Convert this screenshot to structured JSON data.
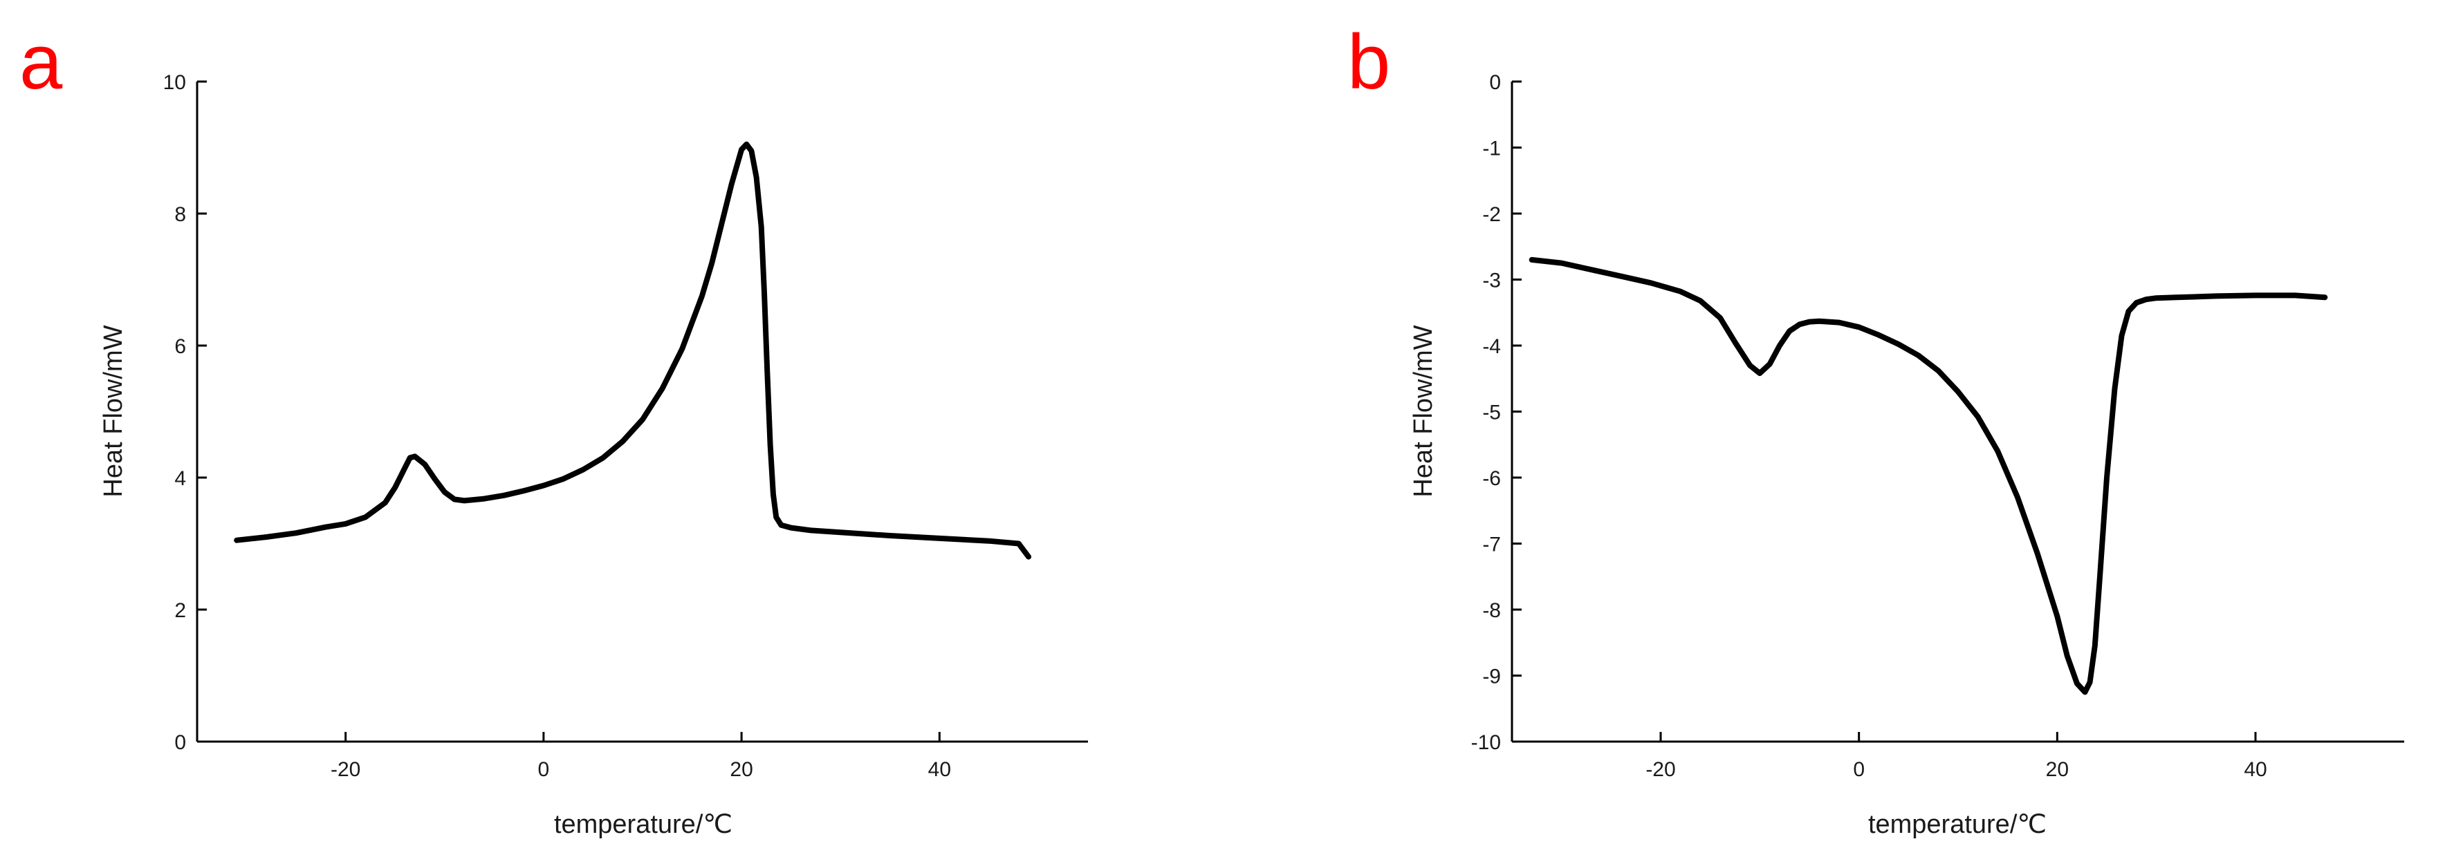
{
  "chart_data": [
    {
      "panel_label": "a",
      "type": "line",
      "xlabel": "temperature/℃",
      "ylabel": "Heat Flow/mW",
      "xlim": [
        -35,
        55
      ],
      "ylim": [
        0,
        10
      ],
      "x_ticks": [
        -20,
        0,
        20,
        40
      ],
      "y_ticks": [
        0,
        2,
        4,
        6,
        8,
        10
      ],
      "x_tick_labels": [
        "-20",
        "0",
        "20",
        "40"
      ],
      "y_tick_labels": [
        "0",
        "2",
        "4",
        "6",
        "8",
        "10"
      ],
      "grid": false,
      "series": [
        {
          "color": "#000000",
          "x": [
            -31,
            -28,
            -25,
            -22,
            -20,
            -18,
            -16,
            -15,
            -14,
            -13.5,
            -13,
            -12,
            -11,
            -10,
            -9,
            -8,
            -6,
            -4,
            -2,
            0,
            2,
            4,
            6,
            8,
            10,
            12,
            14,
            16,
            17,
            18,
            19,
            20,
            20.5,
            21,
            21.5,
            22,
            22.3,
            22.6,
            22.9,
            23.2,
            23.5,
            24,
            25,
            27,
            30,
            35,
            40,
            45,
            48,
            49
          ],
          "y": [
            3.05,
            3.1,
            3.16,
            3.25,
            3.3,
            3.4,
            3.62,
            3.85,
            4.15,
            4.3,
            4.32,
            4.2,
            3.98,
            3.78,
            3.67,
            3.65,
            3.68,
            3.73,
            3.8,
            3.88,
            3.98,
            4.12,
            4.3,
            4.55,
            4.88,
            5.35,
            5.95,
            6.75,
            7.25,
            7.85,
            8.45,
            8.97,
            9.05,
            8.95,
            8.55,
            7.8,
            6.8,
            5.6,
            4.5,
            3.75,
            3.4,
            3.28,
            3.24,
            3.2,
            3.17,
            3.12,
            3.08,
            3.04,
            3.0,
            2.8
          ]
        }
      ]
    },
    {
      "panel_label": "b",
      "type": "line",
      "xlabel": "temperature/℃",
      "ylabel": "Heat Flow/mW",
      "xlim": [
        -35,
        55
      ],
      "ylim": [
        -10,
        0
      ],
      "x_ticks": [
        -20,
        0,
        20,
        40
      ],
      "y_ticks": [
        0,
        -1,
        -2,
        -3,
        -4,
        -5,
        -6,
        -7,
        -8,
        -9,
        -10
      ],
      "x_tick_labels": [
        "-20",
        "0",
        "20",
        "40"
      ],
      "y_tick_labels": [
        "0",
        "-1",
        "-2",
        "-3",
        "-4",
        "-5",
        "-6",
        "-7",
        "-8",
        "-9",
        "-10"
      ],
      "grid": false,
      "series": [
        {
          "color": "#000000",
          "x": [
            -33,
            -30,
            -27,
            -24,
            -21,
            -18,
            -16,
            -14,
            -12.5,
            -11,
            -10,
            -9,
            -8,
            -7,
            -6,
            -5,
            -4,
            -2,
            0,
            2,
            4,
            6,
            8,
            10,
            12,
            14,
            16,
            18,
            20,
            21,
            22,
            22.8,
            23.3,
            23.8,
            24.3,
            25,
            25.8,
            26.5,
            27.2,
            28,
            29,
            30,
            32,
            36,
            40,
            44,
            47
          ],
          "y": [
            -2.7,
            -2.75,
            -2.85,
            -2.95,
            -3.05,
            -3.18,
            -3.32,
            -3.58,
            -3.95,
            -4.3,
            -4.42,
            -4.28,
            -4.0,
            -3.78,
            -3.68,
            -3.64,
            -3.63,
            -3.65,
            -3.72,
            -3.84,
            -3.98,
            -4.15,
            -4.38,
            -4.7,
            -5.08,
            -5.6,
            -6.3,
            -7.15,
            -8.1,
            -8.7,
            -9.12,
            -9.25,
            -9.1,
            -8.55,
            -7.5,
            -6.0,
            -4.65,
            -3.85,
            -3.48,
            -3.35,
            -3.3,
            -3.28,
            -3.27,
            -3.25,
            -3.24,
            -3.24,
            -3.27
          ]
        }
      ]
    }
  ]
}
